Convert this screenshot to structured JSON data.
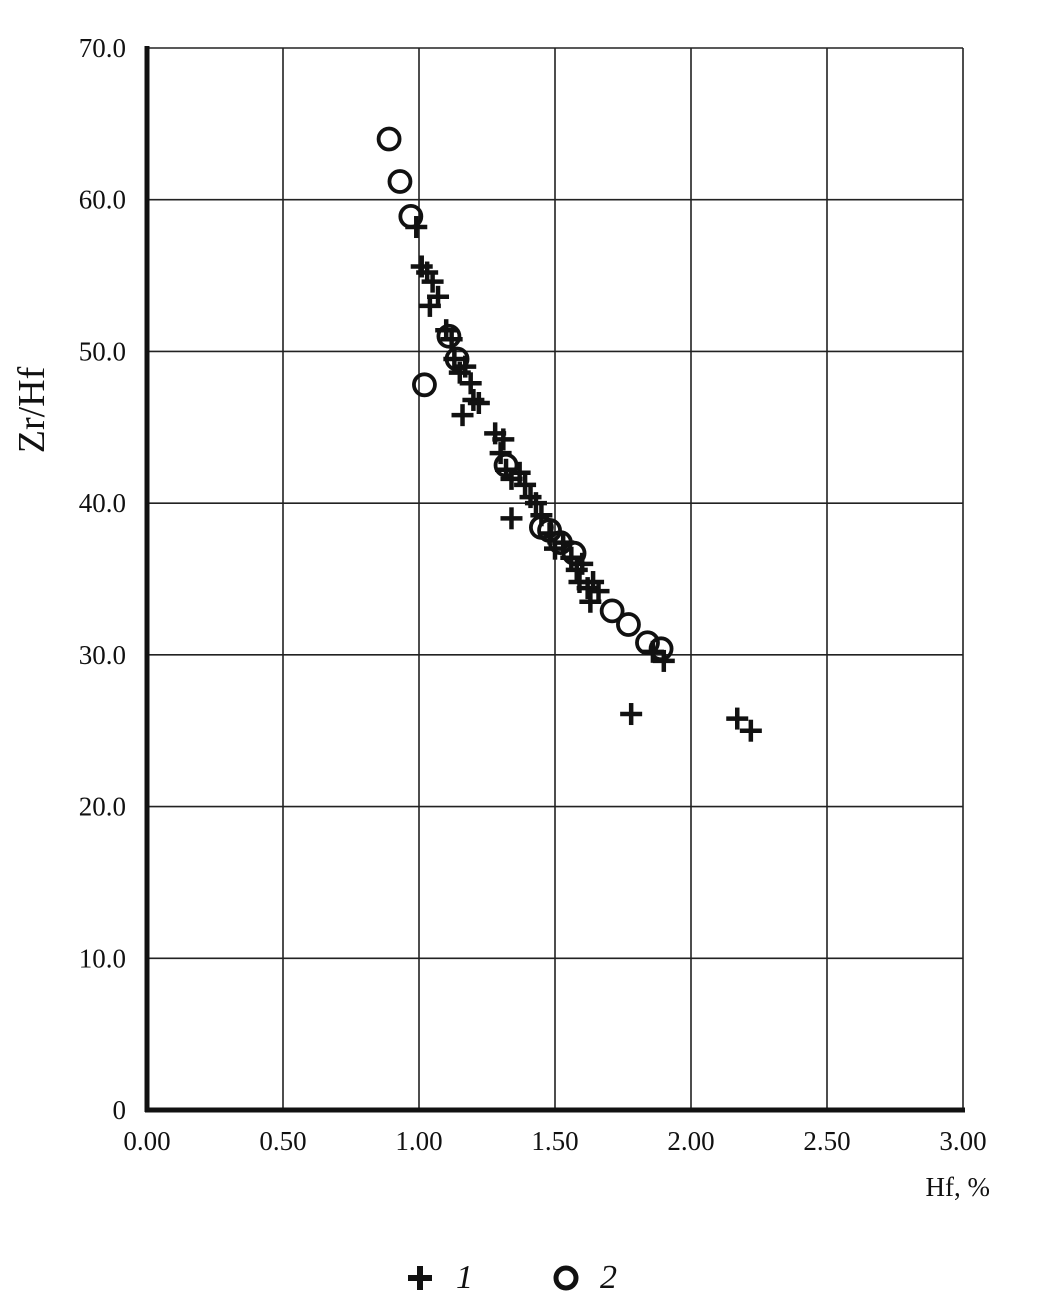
{
  "chart_data": {
    "type": "scatter",
    "title": "",
    "xlabel": "Hf, %",
    "ylabel": "Zr/Hf",
    "xlim": [
      0,
      3
    ],
    "ylim": [
      0,
      70
    ],
    "x_ticks": [
      "0.00",
      "0.50",
      "1.00",
      "1.50",
      "2.00",
      "2.50",
      "3.00"
    ],
    "y_ticks": [
      "0",
      "10.0",
      "20.0",
      "30.0",
      "40.0",
      "50.0",
      "60.0",
      "70.0"
    ],
    "grid": true,
    "legend_position": "bottom-center",
    "series": [
      {
        "name": "1",
        "marker": "plus",
        "color": "#111111",
        "points": [
          [
            0.99,
            58.2
          ],
          [
            1.01,
            55.6
          ],
          [
            1.03,
            55.2
          ],
          [
            1.05,
            54.6
          ],
          [
            1.04,
            53.0
          ],
          [
            1.07,
            53.6
          ],
          [
            1.1,
            51.4
          ],
          [
            1.12,
            50.8
          ],
          [
            1.13,
            49.5
          ],
          [
            1.15,
            48.6
          ],
          [
            1.17,
            49.0
          ],
          [
            1.19,
            47.9
          ],
          [
            1.2,
            46.8
          ],
          [
            1.22,
            46.6
          ],
          [
            1.16,
            45.8
          ],
          [
            1.28,
            44.6
          ],
          [
            1.31,
            44.2
          ],
          [
            1.3,
            43.3
          ],
          [
            1.32,
            42.2
          ],
          [
            1.34,
            41.6
          ],
          [
            1.37,
            42.0
          ],
          [
            1.39,
            41.2
          ],
          [
            1.41,
            40.4
          ],
          [
            1.43,
            40.0
          ],
          [
            1.45,
            39.2
          ],
          [
            1.34,
            39.0
          ],
          [
            1.48,
            38.0
          ],
          [
            1.5,
            37.0
          ],
          [
            1.53,
            37.4
          ],
          [
            1.56,
            36.4
          ],
          [
            1.58,
            35.6
          ],
          [
            1.6,
            36.0
          ],
          [
            1.59,
            34.8
          ],
          [
            1.62,
            34.4
          ],
          [
            1.64,
            34.8
          ],
          [
            1.66,
            34.2
          ],
          [
            1.63,
            33.5
          ],
          [
            1.86,
            30.2
          ],
          [
            1.9,
            29.6
          ],
          [
            1.78,
            26.1
          ],
          [
            2.17,
            25.8
          ],
          [
            2.22,
            25.0
          ]
        ]
      },
      {
        "name": "2",
        "marker": "circle",
        "color": "#111111",
        "points": [
          [
            0.89,
            64.0
          ],
          [
            0.93,
            61.2
          ],
          [
            0.97,
            58.9
          ],
          [
            1.02,
            47.8
          ],
          [
            1.11,
            51.0
          ],
          [
            1.14,
            49.5
          ],
          [
            1.32,
            42.5
          ],
          [
            1.45,
            38.4
          ],
          [
            1.48,
            38.2
          ],
          [
            1.52,
            37.4
          ],
          [
            1.57,
            36.7
          ],
          [
            1.71,
            32.9
          ],
          [
            1.77,
            32.0
          ],
          [
            1.84,
            30.8
          ],
          [
            1.89,
            30.4
          ]
        ]
      }
    ]
  }
}
